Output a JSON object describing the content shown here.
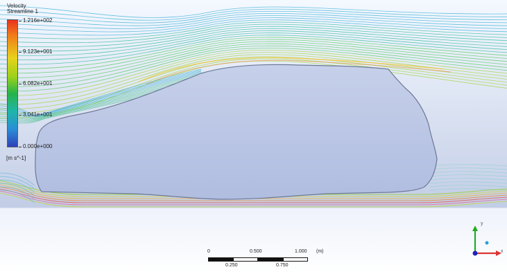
{
  "legend": {
    "title_line1": "Velocity",
    "title_line2": "Streamline 1",
    "max": "1.216e+002",
    "v3": "9.123e+001",
    "v2": "6.082e+001",
    "v1": "3.041e+001",
    "min": "0.000e+000",
    "unit": "[m s^-1]",
    "colors": [
      "#e8331f",
      "#f07b1a",
      "#e8d21c",
      "#9ad11d",
      "#27b34a",
      "#1fb5a8",
      "#2a8fd6",
      "#2f40b8"
    ]
  },
  "scale_bar": {
    "top": [
      "0",
      "0.500",
      "1.000"
    ],
    "unit": "(m)",
    "bottom": [
      "0.250",
      "0.750"
    ]
  },
  "triad": {
    "y_label": "y",
    "x_label": "x",
    "colors": {
      "x": "#d33",
      "y": "#2a2",
      "z": "#22b"
    }
  }
}
